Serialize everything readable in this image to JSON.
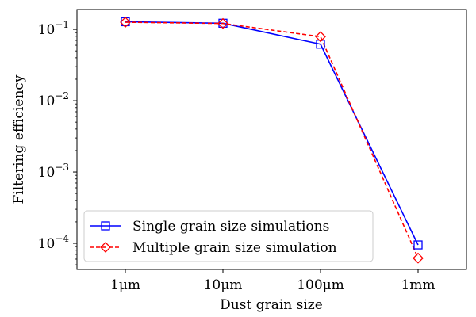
{
  "chart_data": {
    "type": "line",
    "title": "",
    "xlabel": "Dust grain size",
    "ylabel": "Filtering efficiency",
    "yscale": "log",
    "ylim": [
      4.3e-05,
      0.19
    ],
    "categories": [
      "1μm",
      "10μm",
      "100μm",
      "1mm"
    ],
    "y_ticks": [
      {
        "value": 0.1,
        "mantissa": "10",
        "exp": "−1"
      },
      {
        "value": 0.01,
        "mantissa": "10",
        "exp": "−2"
      },
      {
        "value": 0.001,
        "mantissa": "10",
        "exp": "−3"
      },
      {
        "value": 0.0001,
        "mantissa": "10",
        "exp": "−4"
      }
    ],
    "series": [
      {
        "name": "Single grain size simulations",
        "values": [
          0.128,
          0.122,
          0.062,
          9.5e-05
        ],
        "color": "#0000ff",
        "marker": "square",
        "linestyle": "solid"
      },
      {
        "name": "Multiple grain size simulation",
        "values": [
          0.126,
          0.121,
          0.079,
          6.2e-05
        ],
        "color": "#ff0000",
        "marker": "diamond",
        "linestyle": "dashed"
      }
    ],
    "legend_position": "bottom-left"
  }
}
